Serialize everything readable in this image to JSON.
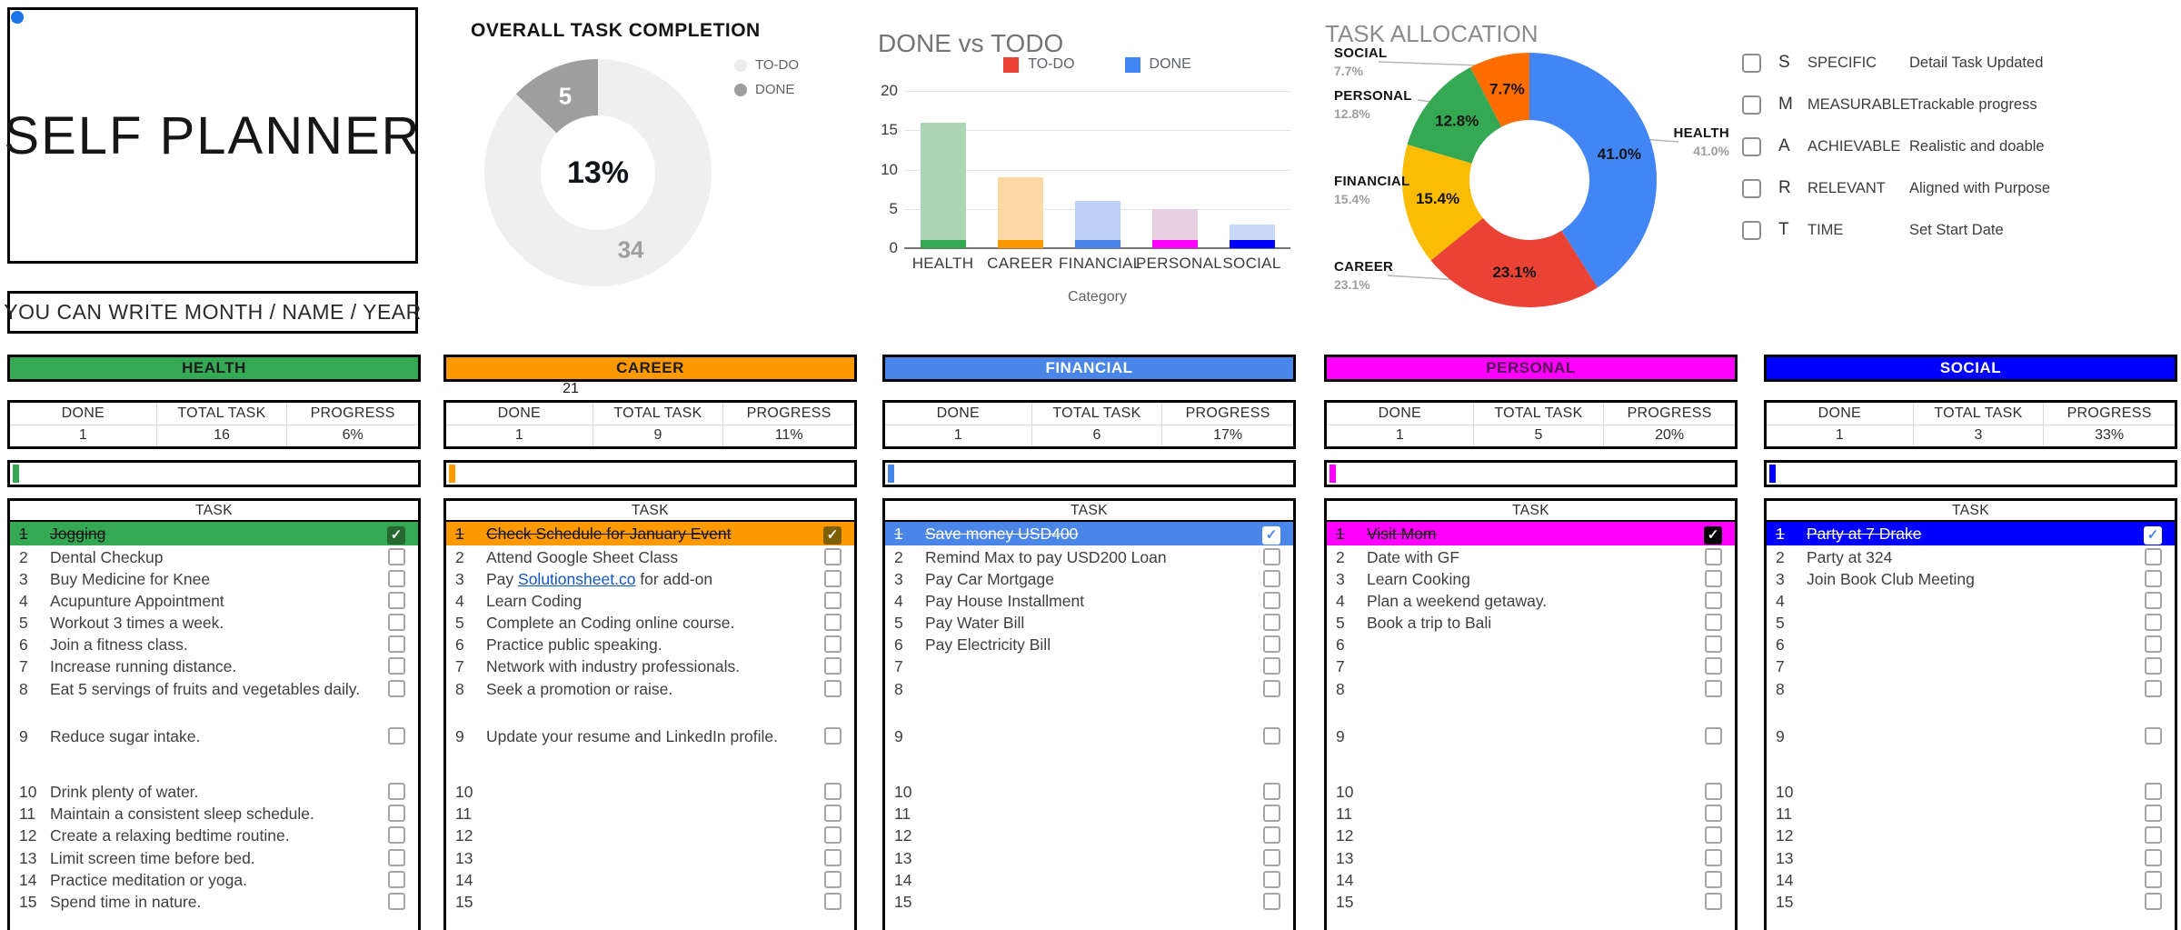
{
  "sheet": {
    "title": "SELF PLANNER",
    "subtitle": "YOU CAN WRITE MONTH / NAME / YEAR"
  },
  "labels": {
    "done": "DONE",
    "total_task": "TOTAL TASK",
    "progress": "PROGRESS",
    "task": "TASK"
  },
  "smart": {
    "items": [
      {
        "letter": "S",
        "name": "SPECIFIC",
        "desc": "Detail Task Updated"
      },
      {
        "letter": "M",
        "name": "MEASURABLE",
        "desc": "Trackable progress"
      },
      {
        "letter": "A",
        "name": "ACHIEVABLE",
        "desc": "Realistic and doable"
      },
      {
        "letter": "R",
        "name": "RELEVANT",
        "desc": "Aligned with Purpose"
      },
      {
        "letter": "T",
        "name": "TIME",
        "desc": "Set Start Date"
      }
    ]
  },
  "chart_data": [
    {
      "type": "pie",
      "donut": true,
      "title": "OVERALL TASK COMPLETION",
      "center_label": "13%",
      "legend_position": "right",
      "legend": [
        {
          "label": "TO-DO",
          "color": "#ececec"
        },
        {
          "label": "DONE",
          "color": "#9e9e9e"
        }
      ],
      "slices": [
        {
          "label": "TO-DO",
          "value": 34,
          "color": "#efefef",
          "value_label": "34",
          "value_label_color": "#9e9e9e"
        },
        {
          "label": "DONE",
          "value": 5,
          "color": "#9e9e9e",
          "value_label": "5",
          "value_label_color": "#ffffff"
        }
      ]
    },
    {
      "type": "bar",
      "stacked": true,
      "title": "DONE vs TODO",
      "xlabel": "Category",
      "ylim": [
        0,
        20
      ],
      "yticks": [
        0,
        5,
        10,
        15,
        20
      ],
      "grid": true,
      "legend_position": "top",
      "legend": [
        {
          "label": "TO-DO",
          "color": "#ea4335"
        },
        {
          "label": "DONE",
          "color": "#4285f4"
        }
      ],
      "categories": [
        "HEALTH",
        "CAREER",
        "FINANCIAL",
        "PERSONAL",
        "SOCIAL"
      ],
      "series": [
        {
          "name": "DONE",
          "values": [
            1,
            1,
            1,
            1,
            1
          ],
          "colors": [
            "#34a853",
            "#ff9900",
            "#4a86e8",
            "#ff00ff",
            "#0000ff"
          ]
        },
        {
          "name": "TO-DO",
          "values": [
            15,
            8,
            5,
            4,
            2
          ],
          "colors": [
            "#abd5b5",
            "#fcd9a4",
            "#bcd0f5",
            "#e8d0e3",
            "#c9daf8"
          ]
        }
      ],
      "totals": [
        16,
        9,
        6,
        5,
        3
      ]
    },
    {
      "type": "pie",
      "donut": true,
      "title": "TASK ALLOCATION",
      "slices": [
        {
          "label": "HEALTH",
          "value": 41.0,
          "pct": "41.0%",
          "color": "#4285f4"
        },
        {
          "label": "CAREER",
          "value": 23.1,
          "pct": "23.1%",
          "color": "#ea4335"
        },
        {
          "label": "FINANCIAL",
          "value": 15.4,
          "pct": "15.4%",
          "color": "#fbbc04"
        },
        {
          "label": "PERSONAL",
          "value": 12.8,
          "pct": "12.8%",
          "color": "#34a853"
        },
        {
          "label": "SOCIAL",
          "value": 7.7,
          "pct": "7.7%",
          "color": "#ff6d01"
        }
      ]
    }
  ],
  "columns": [
    {
      "name": "HEALTH",
      "color": "#34a853",
      "header_text_color": "#1d1d1d",
      "note": "",
      "done": "1",
      "total": "16",
      "progress": "6%",
      "row1_text_color": "#151515",
      "check_bg": "#27682f",
      "check_color": "#ffffff",
      "tasks": [
        "Jogging",
        "Dental Checkup",
        "Buy Medicine for Knee",
        "Acupunture Appointment",
        "Workout 3 times a week.",
        "Join a fitness class.",
        "Increase running distance.",
        "Eat 5 servings of fruits and vegetables daily.",
        "Reduce sugar intake.",
        "Drink plenty of water.",
        "Maintain a consistent sleep schedule.",
        "Create a relaxing bedtime routine.",
        "Limit screen time before bed.",
        "Practice meditation or yoga.",
        "Spend time in nature."
      ]
    },
    {
      "name": "CAREER",
      "color": "#ff9900",
      "header_text_color": "#1d1d1d",
      "note": "21",
      "done": "1",
      "total": "9",
      "progress": "11%",
      "row1_text_color": "#151515",
      "check_bg": "#7f6000",
      "check_color": "#ffffff",
      "tasks": [
        "Check Schedule for January Event",
        "Attend Google Sheet Class",
        {
          "pre": "Pay ",
          "link": "Solutionsheet.co",
          "post": " for add-on"
        },
        "Learn Coding",
        "Complete an Coding online course.",
        "Practice public speaking.",
        "Network with industry professionals.",
        "Seek a promotion or raise.",
        "Update your resume and LinkedIn profile.",
        "",
        "",
        "",
        "",
        "",
        ""
      ]
    },
    {
      "name": "FINANCIAL",
      "color": "#4a86e8",
      "header_text_color": "#ffffff",
      "note": "",
      "done": "1",
      "total": "6",
      "progress": "17%",
      "row1_text_color": "#ffffff",
      "check_bg": "#ffffff",
      "check_color": "#4a86e8",
      "tasks": [
        "Save money USD400",
        "Remind Max to pay USD200 Loan",
        "Pay Car Mortgage",
        "Pay House Installment",
        "Pay Water Bill",
        "Pay Electricity Bill",
        "",
        "",
        "",
        "",
        "",
        "",
        "",
        "",
        ""
      ]
    },
    {
      "name": "PERSONAL",
      "color": "#ff00ff",
      "header_text_color": "#531253",
      "note": "",
      "done": "1",
      "total": "5",
      "progress": "20%",
      "row1_text_color": "#151515",
      "check_bg": "#000000",
      "check_color": "#ffffff",
      "tasks": [
        "Visit Mom",
        "Date with GF",
        "Learn Cooking",
        "Plan a weekend getaway.",
        "Book a trip to Bali",
        "",
        "",
        "",
        "",
        "",
        "",
        "",
        "",
        "",
        ""
      ]
    },
    {
      "name": "SOCIAL",
      "color": "#0000ff",
      "header_text_color": "#ffffff",
      "note": "",
      "done": "1",
      "total": "3",
      "progress": "33%",
      "row1_text_color": "#ffffff",
      "check_bg": "#ffffff",
      "check_color": "#4a86e8",
      "tasks": [
        "Party at 7 Drake",
        "Party at 324",
        "Join Book Club Meeting",
        "",
        "",
        "",
        "",
        "",
        "",
        "",
        "",
        "",
        "",
        "",
        ""
      ]
    }
  ]
}
